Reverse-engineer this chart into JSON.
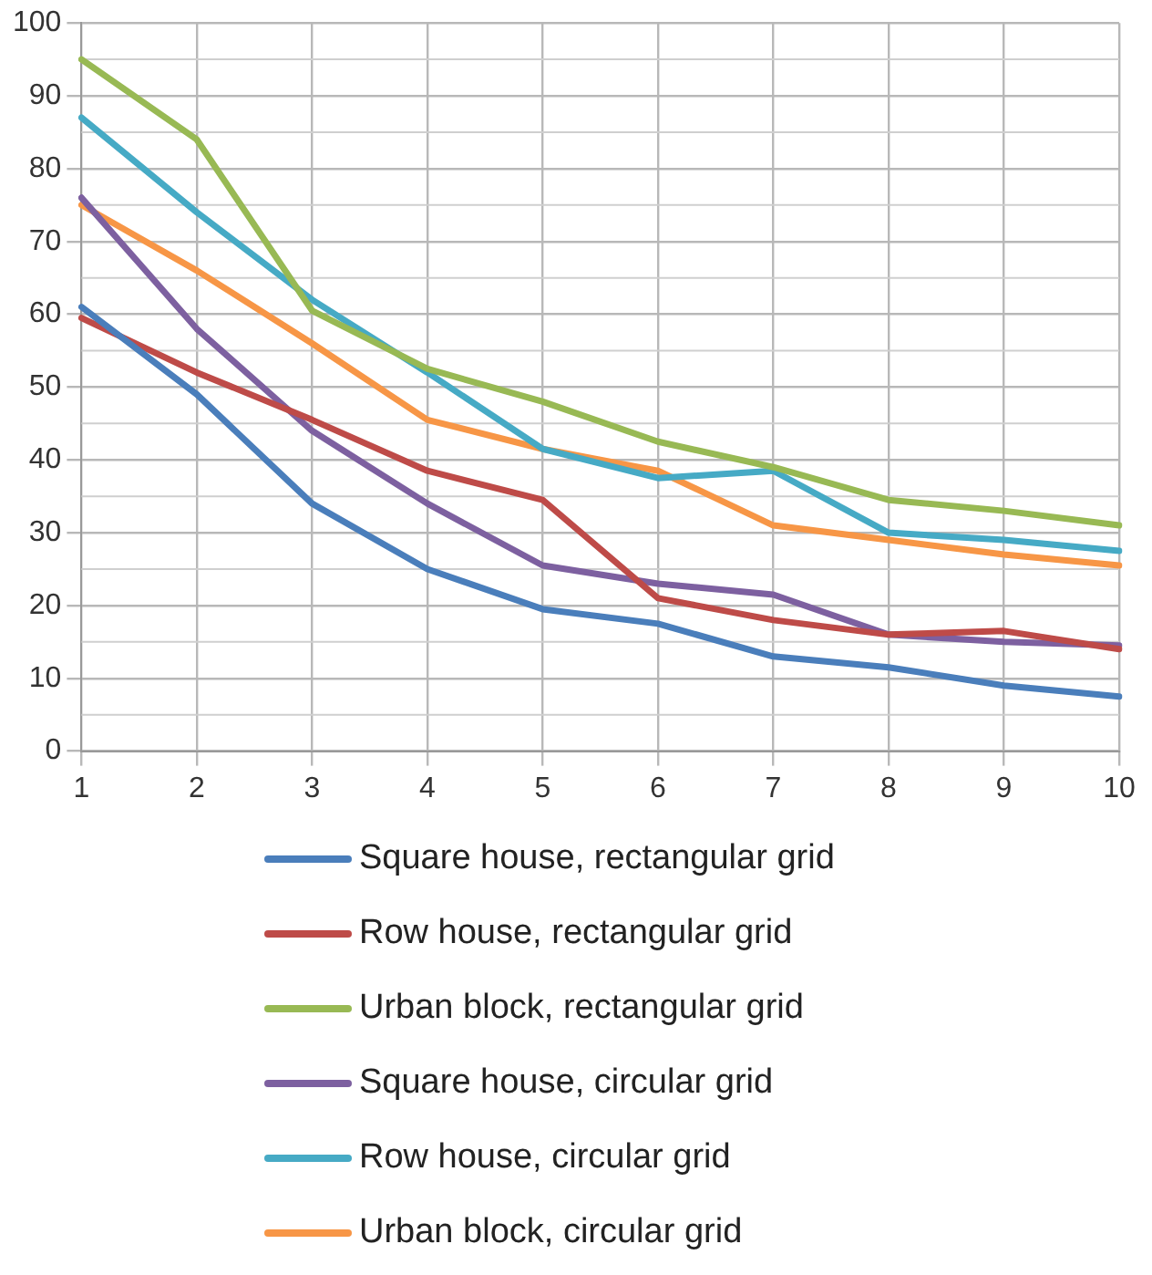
{
  "chart_data": {
    "type": "line",
    "categories": [
      "1",
      "2",
      "3",
      "4",
      "5",
      "6",
      "7",
      "8",
      "9",
      "10"
    ],
    "ylim": [
      0,
      100
    ],
    "yticks": [
      0,
      10,
      20,
      30,
      40,
      50,
      60,
      70,
      80,
      90,
      100
    ],
    "grid": true,
    "legend": "bottom",
    "marker": "none",
    "line_style": "solid",
    "series": [
      {
        "name": "Square house, rectangular grid",
        "color": "#4a7ebb",
        "values": [
          61,
          49,
          34,
          25,
          19.5,
          17.5,
          13,
          11.5,
          9,
          7.5
        ]
      },
      {
        "name": "Row house, rectangular grid",
        "color": "#be4b48",
        "values": [
          59.5,
          52,
          45.5,
          38.5,
          34.5,
          21,
          18,
          16,
          16.5,
          14
        ]
      },
      {
        "name": "Urban block, rectangular grid",
        "color": "#98b954",
        "values": [
          95,
          84,
          60.5,
          52.5,
          48,
          42.5,
          39,
          34.5,
          33,
          31
        ]
      },
      {
        "name": "Square house, circular grid",
        "color": "#7d60a0",
        "values": [
          76,
          58,
          44,
          34,
          25.5,
          23,
          21.5,
          16,
          15,
          14.5
        ]
      },
      {
        "name": "Row house, circular grid",
        "color": "#46aac5",
        "values": [
          87,
          74,
          62,
          52,
          41.5,
          37.5,
          38.5,
          30,
          29,
          27.5
        ]
      },
      {
        "name": "Urban block, circular grid",
        "color": "#f79646",
        "values": [
          75,
          66,
          56,
          45.5,
          41.5,
          38.5,
          31,
          29,
          27,
          25.5
        ]
      }
    ]
  }
}
